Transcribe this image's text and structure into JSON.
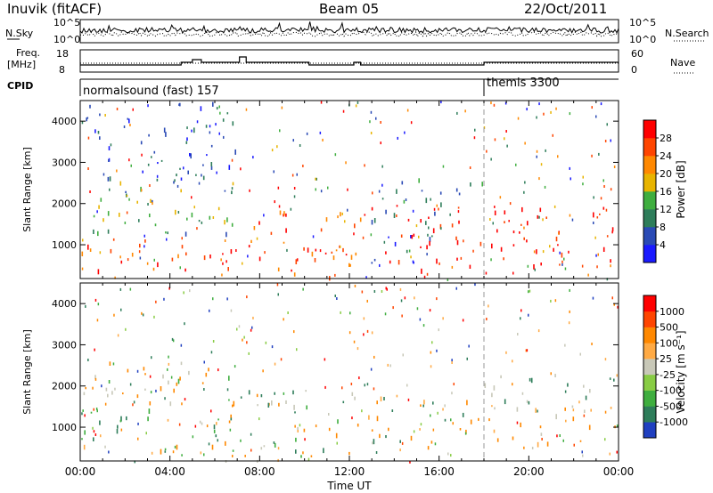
{
  "header": {
    "station": "Inuvik (fitACF)",
    "beam": "Beam 05",
    "date": "22/Oct/2011"
  },
  "noise_panel": {
    "left_label": "N.Sky",
    "right_label": "N.Search",
    "ticks": [
      "10^5",
      "10^0"
    ]
  },
  "freq_panel": {
    "left_label_line1": "Freq.",
    "left_label_line2": "[MHz]",
    "right_label": "Nave",
    "left_ticks": [
      "18",
      "8"
    ],
    "right_ticks": [
      "60",
      "0"
    ]
  },
  "cpid_panel": {
    "label": "CPID",
    "segments": [
      {
        "name": "normalsound (fast) 157",
        "start_hour": 0
      },
      {
        "name": "themis 3300",
        "start_hour": 18
      }
    ]
  },
  "chart_data": [
    {
      "type": "heatmap",
      "quantity": "Power",
      "ylabel": "Slant Range [km]",
      "xlabel": "Time UT",
      "x_range_hours": [
        0,
        24
      ],
      "y_range_km": [
        180,
        4500
      ],
      "y_ticks": [
        1000,
        2000,
        3000,
        4000
      ],
      "x_tick_labels": [
        "00:00",
        "04:00",
        "08:00",
        "12:00",
        "16:00",
        "20:00",
        "00:00"
      ],
      "colorbar": {
        "label": "Power [dB]",
        "ticks": [
          "4",
          "8",
          "12",
          "16",
          "20",
          "24",
          "28"
        ],
        "colors": [
          "#1a1aff",
          "#2a4ab5",
          "#2e7d5a",
          "#3fae3f",
          "#e8b400",
          "#ff8800",
          "#ff4500",
          "#ff0000"
        ]
      },
      "scatter_regions": [
        {
          "t0": 0.0,
          "t1": 7.0,
          "r0": 380,
          "r1": 1200,
          "colors": [
            "#ff0000",
            "#ff4500",
            "#ff8800"
          ]
        },
        {
          "t0": 0.0,
          "t1": 7.0,
          "r0": 1200,
          "r1": 2600,
          "colors": [
            "#3fae3f",
            "#2e7d5a",
            "#2a4ab5",
            "#e8b400"
          ]
        },
        {
          "t0": 0.0,
          "t1": 7.0,
          "r0": 2600,
          "r1": 4500,
          "colors": [
            "#2a4ab5",
            "#1a1aff",
            "#2e7d5a"
          ]
        },
        {
          "t0": 7.0,
          "t1": 12.5,
          "r0": 200,
          "r1": 2000,
          "colors": [
            "#ff0000",
            "#ff4500",
            "#ff8800"
          ]
        },
        {
          "t0": 12.5,
          "t1": 16.0,
          "r0": 400,
          "r1": 2200,
          "colors": [
            "#2a4ab5",
            "#1a1aff",
            "#2e7d5a",
            "#ff0000"
          ]
        },
        {
          "t0": 14.0,
          "t1": 24.0,
          "r0": 500,
          "r1": 2000,
          "colors": [
            "#ff0000",
            "#ff4500",
            "#ff0000"
          ]
        },
        {
          "t0": 14.0,
          "t1": 18.0,
          "r0": 2000,
          "r1": 2700,
          "colors": [
            "#2e7d5a",
            "#2a4ab5",
            "#3fae3f"
          ]
        }
      ]
    },
    {
      "type": "heatmap",
      "quantity": "Velocity",
      "ylabel": "Slant Range [km]",
      "xlabel": "Time UT",
      "x_range_hours": [
        0,
        24
      ],
      "y_range_km": [
        180,
        4500
      ],
      "y_ticks": [
        1000,
        2000,
        3000,
        4000
      ],
      "x_tick_labels": [
        "00:00",
        "04:00",
        "08:00",
        "12:00",
        "16:00",
        "20:00",
        "00:00"
      ],
      "colorbar": {
        "label": "Velocity [m s⁻¹]",
        "ticks": [
          "1000",
          "500",
          "100",
          "25",
          "-25",
          "-100",
          "-500",
          "-1000"
        ],
        "colors": [
          "#2040c0",
          "#2e7d5a",
          "#3fae3f",
          "#88cc44",
          "#c8c8b8",
          "#ffaa44",
          "#ff8800",
          "#ff4500",
          "#ff0000"
        ]
      },
      "scatter_regions": [
        {
          "t0": 0.0,
          "t1": 7.0,
          "r0": 300,
          "r1": 1300,
          "colors": [
            "#ff8800",
            "#ffaa44",
            "#2e7d5a",
            "#3fae3f"
          ]
        },
        {
          "t0": 0.0,
          "t1": 7.0,
          "r0": 1300,
          "r1": 2600,
          "colors": [
            "#c8c8b8",
            "#ff8800",
            "#3fae3f"
          ]
        },
        {
          "t0": 7.0,
          "t1": 12.5,
          "r0": 300,
          "r1": 2000,
          "colors": [
            "#2e7d5a",
            "#3fae3f",
            "#c8c8b8",
            "#ff8800"
          ]
        },
        {
          "t0": 12.5,
          "t1": 18.0,
          "r0": 500,
          "r1": 1800,
          "colors": [
            "#ff8800",
            "#ffaa44",
            "#2e7d5a"
          ]
        },
        {
          "t0": 18.0,
          "t1": 24.0,
          "r0": 600,
          "r1": 1600,
          "colors": [
            "#c8c8b8",
            "#ff8800",
            "#ffaa44",
            "#c8c8b8"
          ]
        },
        {
          "t0": 18.0,
          "t1": 24.0,
          "r0": 1600,
          "r1": 2300,
          "colors": [
            "#2e7d5a",
            "#c8c8b8"
          ]
        }
      ]
    }
  ]
}
